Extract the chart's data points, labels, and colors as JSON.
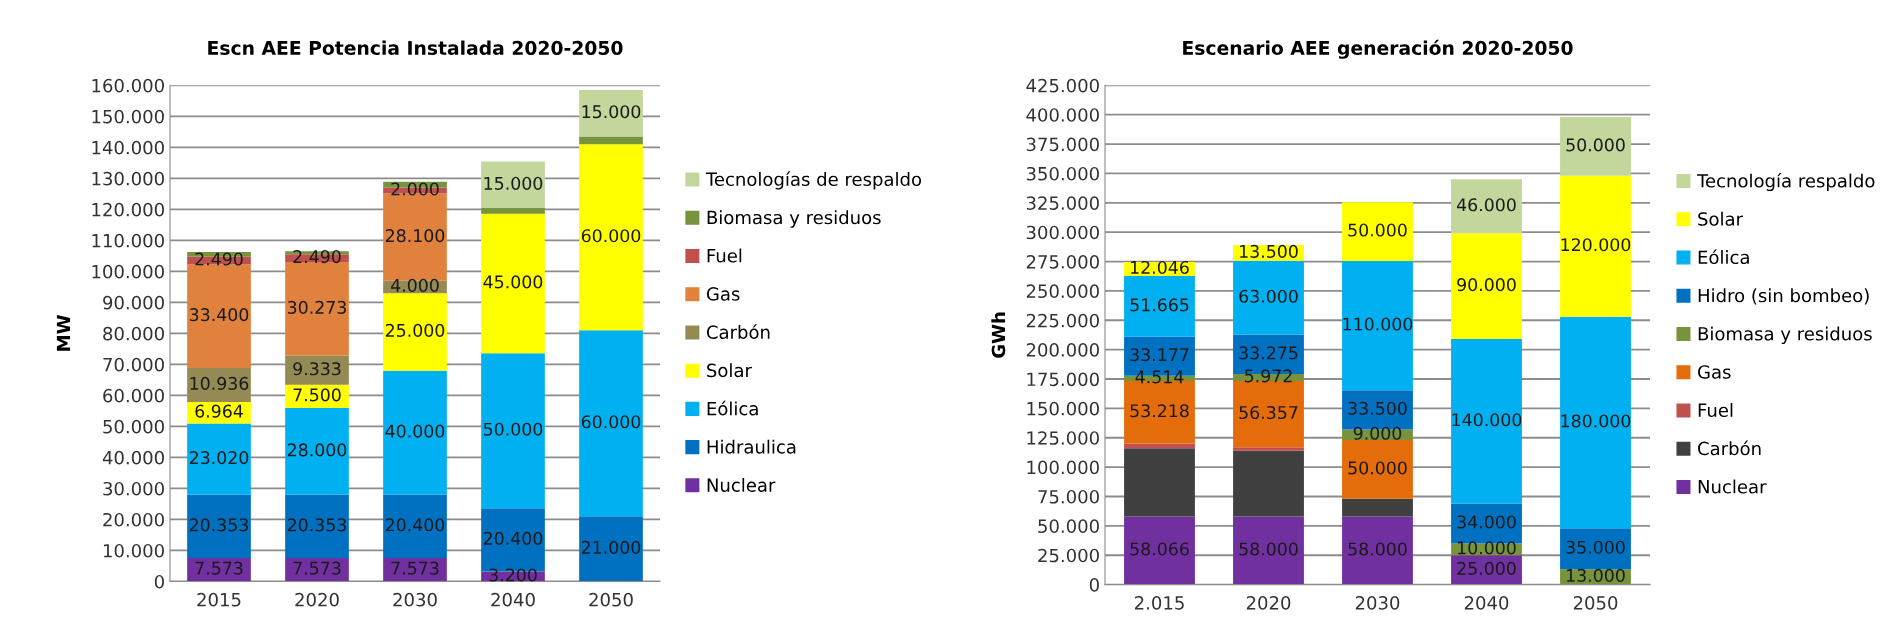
{
  "chart_data": [
    {
      "type": "bar",
      "stacked": true,
      "title": "Escn AEE Potencia Instalada 2020-2050",
      "ylabel": "MW",
      "categories": [
        "2015",
        "2020",
        "2030",
        "2040",
        "2050"
      ],
      "ylim": [
        0,
        160000
      ],
      "yticks": [
        {
          "value": 0,
          "label": "0"
        },
        {
          "value": 10000,
          "label": "10.000"
        },
        {
          "value": 20000,
          "label": "20.000"
        },
        {
          "value": 30000,
          "label": "30.000"
        },
        {
          "value": 40000,
          "label": "40.000"
        },
        {
          "value": 50000,
          "label": "50.000"
        },
        {
          "value": 60000,
          "label": "60.000"
        },
        {
          "value": 70000,
          "label": "70.000"
        },
        {
          "value": 80000,
          "label": "80.000"
        },
        {
          "value": 90000,
          "label": "90.000"
        },
        {
          "value": 100000,
          "label": "100.000"
        },
        {
          "value": 110000,
          "label": "110.000"
        },
        {
          "value": 120000,
          "label": "120.000"
        },
        {
          "value": 130000,
          "label": "130.000"
        },
        {
          "value": 140000,
          "label": "140.000"
        },
        {
          "value": 150000,
          "label": "150.000"
        },
        {
          "value": 160000,
          "label": "160.000"
        }
      ],
      "grid": "y",
      "legend": "right",
      "series": [
        {
          "name": "Nuclear",
          "color": "#7030a0",
          "values": [
            7573,
            7573,
            7573,
            3200,
            null
          ],
          "value_labels": [
            "7.573",
            "7.573",
            "7.573",
            "3.200",
            null
          ]
        },
        {
          "name": "Hidraulica",
          "color": "#0070c0",
          "values": [
            20353,
            20353,
            20400,
            20400,
            21000
          ],
          "value_labels": [
            "20.353",
            "20.353",
            "20.400",
            "20.400",
            "21.000"
          ]
        },
        {
          "name": "Eólica",
          "color": "#00b0f0",
          "values": [
            23020,
            28000,
            40000,
            50000,
            60000
          ],
          "value_labels": [
            "23.020",
            "28.000",
            "40.000",
            "50.000",
            "60.000"
          ]
        },
        {
          "name": "Solar",
          "color": "#ffff00",
          "values": [
            6964,
            7500,
            25000,
            45000,
            60000
          ],
          "value_labels": [
            "6.964",
            "7.500",
            "25.000",
            "45.000",
            "60.000"
          ]
        },
        {
          "name": "Carbón",
          "color": "#948a54",
          "values": [
            10936,
            9333,
            4000,
            null,
            null
          ],
          "value_labels": [
            "10.936",
            "9.333",
            "4.000",
            null,
            null
          ]
        },
        {
          "name": "Gas",
          "color": "#e0823d",
          "values": [
            33400,
            30273,
            28100,
            null,
            null
          ],
          "value_labels": [
            "33.400",
            "30.273",
            "28.100",
            null,
            null
          ]
        },
        {
          "name": "Fuel",
          "color": "#c0504d",
          "values": [
            2490,
            2490,
            2000,
            null,
            null
          ],
          "value_labels": [
            "2.490",
            "2.490",
            "2.000",
            null,
            null
          ]
        },
        {
          "name": "Biomasa y residuos",
          "color": "#77933c",
          "values": [
            1500,
            1000,
            1800,
            1800,
            2500
          ],
          "value_labels": [
            null,
            null,
            null,
            null,
            null
          ]
        },
        {
          "name": "Tecnologías de respaldo",
          "color": "#c3d69b",
          "values": [
            null,
            null,
            null,
            15000,
            15000
          ],
          "value_labels": [
            null,
            null,
            null,
            "15.000",
            "15.000"
          ]
        }
      ]
    },
    {
      "type": "bar",
      "stacked": true,
      "title": "Escenario AEE generación 2020-2050",
      "ylabel": "GWh",
      "categories": [
        "2.015",
        "2020",
        "2030",
        "2040",
        "2050"
      ],
      "ylim": [
        0,
        425000
      ],
      "yticks": [
        {
          "value": 0,
          "label": "0"
        },
        {
          "value": 25000,
          "label": "25.000"
        },
        {
          "value": 50000,
          "label": "50.000"
        },
        {
          "value": 75000,
          "label": "75.000"
        },
        {
          "value": 100000,
          "label": "100.000"
        },
        {
          "value": 125000,
          "label": "125.000"
        },
        {
          "value": 150000,
          "label": "150.000"
        },
        {
          "value": 175000,
          "label": "175.000"
        },
        {
          "value": 200000,
          "label": "200.000"
        },
        {
          "value": 225000,
          "label": "225.000"
        },
        {
          "value": 250000,
          "label": "250.000"
        },
        {
          "value": 275000,
          "label": "275.000"
        },
        {
          "value": 300000,
          "label": "300.000"
        },
        {
          "value": 325000,
          "label": "325.000"
        },
        {
          "value": 350000,
          "label": "350.000"
        },
        {
          "value": 375000,
          "label": "375.000"
        },
        {
          "value": 400000,
          "label": "400.000"
        },
        {
          "value": 425000,
          "label": "425.000"
        }
      ],
      "grid": "y",
      "legend": "right",
      "series": [
        {
          "name": "Nuclear",
          "color": "#7030a0",
          "values": [
            58066,
            58000,
            58000,
            25000,
            null
          ],
          "value_labels": [
            "58.066",
            "58.000",
            "58.000",
            "25.000",
            null
          ]
        },
        {
          "name": "Carbón",
          "color": "#404040",
          "values": [
            58000,
            56000,
            15000,
            null,
            null
          ],
          "value_labels": [
            null,
            null,
            null,
            null,
            null
          ]
        },
        {
          "name": "Fuel",
          "color": "#c0504d",
          "values": [
            4000,
            3000,
            null,
            null,
            null
          ],
          "value_labels": [
            null,
            null,
            null,
            null,
            null
          ]
        },
        {
          "name": "Gas",
          "color": "#e46c0a",
          "values": [
            53218,
            56357,
            50000,
            null,
            null
          ],
          "value_labels": [
            "53.218",
            "56.357",
            "50.000",
            null,
            null
          ]
        },
        {
          "name": "Biomasa y residuos",
          "color": "#77933c",
          "values": [
            4514,
            5972,
            9000,
            10000,
            13000
          ],
          "value_labels": [
            "4.514",
            "5.972",
            "9.000",
            "10.000",
            "13.000"
          ]
        },
        {
          "name": "Hidro (sin bombeo)",
          "color": "#0070c0",
          "values": [
            33177,
            33275,
            33500,
            34000,
            35000
          ],
          "value_labels": [
            "33.177",
            "33.275",
            "33.500",
            "34.000",
            "35.000"
          ]
        },
        {
          "name": "Eólica",
          "color": "#00b0f0",
          "values": [
            51665,
            63000,
            110000,
            140000,
            180000
          ],
          "value_labels": [
            "51.665",
            "63.000",
            "110.000",
            "140.000",
            "180.000"
          ]
        },
        {
          "name": "Solar",
          "color": "#ffff00",
          "values": [
            12046,
            13500,
            50000,
            90000,
            120000
          ],
          "value_labels": [
            "12.046",
            "13.500",
            "50.000",
            "90.000",
            "120.000"
          ]
        },
        {
          "name": "Tecnología respaldo",
          "color": "#c3d69b",
          "values": [
            null,
            null,
            null,
            46000,
            50000
          ],
          "value_labels": [
            null,
            null,
            null,
            "46.000",
            "50.000"
          ]
        }
      ]
    }
  ]
}
